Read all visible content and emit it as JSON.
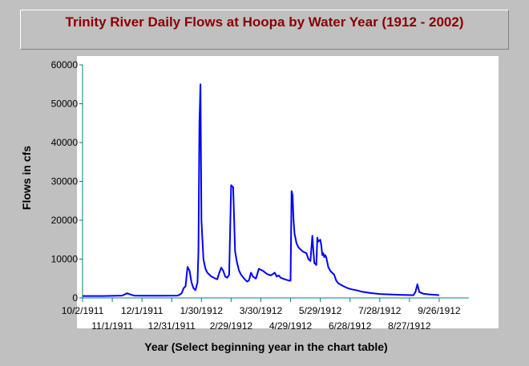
{
  "chart_data": {
    "type": "line",
    "title": "Trinity River Daily Flows at Hoopa by Water Year (1912 - 2002)",
    "xlabel": "Year (Select beginning year in the chart table)",
    "ylabel": "Flows in cfs",
    "ylim": [
      0,
      60000
    ],
    "yticks": [
      {
        "value": 0,
        "label": "0"
      },
      {
        "value": 10000,
        "label": "10000"
      },
      {
        "value": 20000,
        "label": "20000"
      },
      {
        "value": 30000,
        "label": "30000"
      },
      {
        "value": 40000,
        "label": "40000"
      },
      {
        "value": 50000,
        "label": "50000"
      },
      {
        "value": 60000,
        "label": "60000"
      }
    ],
    "xlim": [
      0,
      390
    ],
    "xticks": [
      {
        "day": 0,
        "label": "10/2/1911",
        "row": 1
      },
      {
        "day": 30,
        "label": "11/1/1911",
        "row": 2
      },
      {
        "day": 60,
        "label": "12/1/1911",
        "row": 1
      },
      {
        "day": 90,
        "label": "12/31/1911",
        "row": 2
      },
      {
        "day": 120,
        "label": "1/30/1912",
        "row": 1
      },
      {
        "day": 150,
        "label": "2/29/1912",
        "row": 2
      },
      {
        "day": 180,
        "label": "3/30/1912",
        "row": 1
      },
      {
        "day": 210,
        "label": "4/29/1912",
        "row": 2
      },
      {
        "day": 240,
        "label": "5/29/1912",
        "row": 1
      },
      {
        "day": 270,
        "label": "6/28/1912",
        "row": 2
      },
      {
        "day": 300,
        "label": "7/28/1912",
        "row": 1
      },
      {
        "day": 330,
        "label": "8/27/1912",
        "row": 2
      },
      {
        "day": 360,
        "label": "9/26/1912",
        "row": 1
      }
    ],
    "line_color": "#0000ff",
    "grid": false,
    "series": [
      {
        "name": "",
        "x": [
          0,
          20,
          40,
          45,
          48,
          52,
          60,
          80,
          96,
          98,
          100,
          102,
          104,
          106,
          108,
          110,
          112,
          114,
          116,
          117,
          118,
          119,
          120,
          122,
          124,
          126,
          128,
          130,
          132,
          134,
          136,
          138,
          140,
          142,
          144,
          146,
          148,
          150,
          152,
          154,
          156,
          158,
          160,
          163,
          166,
          168,
          170,
          172,
          175,
          178,
          182,
          186,
          190,
          194,
          196,
          198,
          200,
          204,
          208,
          209,
          210,
          211,
          212,
          213,
          214,
          216,
          218,
          222,
          226,
          228,
          230,
          232,
          233,
          234,
          236,
          237,
          238,
          240,
          241,
          242,
          243,
          244,
          245,
          246,
          248,
          250,
          252,
          254,
          256,
          258,
          260,
          262,
          266,
          270,
          276,
          282,
          290,
          300,
          310,
          320,
          328,
          334,
          336,
          338,
          340,
          344,
          350,
          356,
          360
        ],
        "y": [
          500,
          500,
          600,
          1200,
          900,
          600,
          550,
          550,
          600,
          800,
          1200,
          2500,
          3000,
          8000,
          7000,
          4000,
          2500,
          2000,
          4000,
          12000,
          45000,
          55000,
          20000,
          10000,
          7500,
          6500,
          6000,
          5500,
          5300,
          5000,
          4800,
          6500,
          7800,
          7000,
          5500,
          5200,
          6000,
          29000,
          28500,
          12000,
          9000,
          7000,
          6000,
          5000,
          4200,
          4500,
          6500,
          5500,
          5000,
          7500,
          7000,
          6200,
          5800,
          6500,
          5500,
          5800,
          5200,
          4800,
          4500,
          4400,
          4500,
          27500,
          26500,
          20000,
          16500,
          14000,
          13000,
          12000,
          11500,
          10000,
          9500,
          16000,
          12000,
          9000,
          8500,
          15500,
          14500,
          15000,
          13500,
          11000,
          11500,
          10500,
          11000,
          10500,
          8000,
          7000,
          6500,
          6000,
          4500,
          3800,
          3500,
          3200,
          2700,
          2300,
          2000,
          1600,
          1300,
          1000,
          900,
          800,
          750,
          700,
          1500,
          3500,
          1500,
          1100,
          900,
          800,
          700
        ]
      }
    ]
  }
}
